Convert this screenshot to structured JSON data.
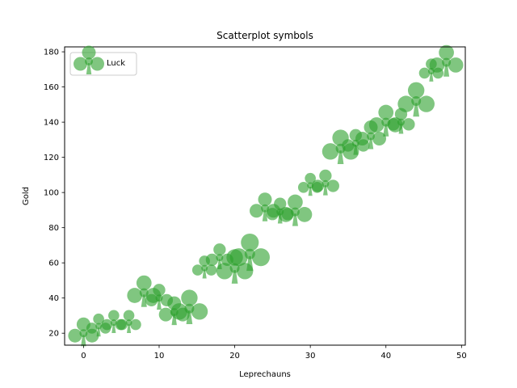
{
  "chart_data": {
    "type": "scatter",
    "title": "Scatterplot symbols",
    "xlabel": "Leprechauns",
    "ylabel": "Gold",
    "xlim": [
      -2.5,
      50.5
    ],
    "ylim": [
      13.2,
      182.8
    ],
    "xticks": [
      0,
      10,
      20,
      30,
      40,
      50
    ],
    "yticks": [
      20,
      40,
      60,
      80,
      100,
      120,
      140,
      160,
      180
    ],
    "grid": false,
    "legend_position": "upper left",
    "series": [
      {
        "name": "Luck",
        "color": "#2ca02c",
        "marker": "club-icon",
        "points": [
          {
            "x": 0,
            "y": 20,
            "s": 1.0
          },
          {
            "x": 2,
            "y": 24,
            "s": 0.8
          },
          {
            "x": 4,
            "y": 26,
            "s": 0.8
          },
          {
            "x": 6,
            "y": 26,
            "s": 0.8
          },
          {
            "x": 8,
            "y": 43,
            "s": 1.1
          },
          {
            "x": 10,
            "y": 40,
            "s": 0.9
          },
          {
            "x": 12,
            "y": 32,
            "s": 1.0
          },
          {
            "x": 14,
            "y": 34,
            "s": 1.2
          },
          {
            "x": 16,
            "y": 57,
            "s": 0.8
          },
          {
            "x": 18,
            "y": 63,
            "s": 0.9
          },
          {
            "x": 20,
            "y": 57,
            "s": 1.2
          },
          {
            "x": 22,
            "y": 65,
            "s": 1.3
          },
          {
            "x": 24,
            "y": 91,
            "s": 1.0
          },
          {
            "x": 26,
            "y": 89,
            "s": 0.9
          },
          {
            "x": 28,
            "y": 89,
            "s": 1.1
          },
          {
            "x": 30,
            "y": 104,
            "s": 0.8
          },
          {
            "x": 32,
            "y": 105,
            "s": 0.9
          },
          {
            "x": 34,
            "y": 125,
            "s": 1.2
          },
          {
            "x": 36,
            "y": 128,
            "s": 0.9
          },
          {
            "x": 38,
            "y": 132,
            "s": 1.0
          },
          {
            "x": 40,
            "y": 140,
            "s": 1.1
          },
          {
            "x": 42,
            "y": 140,
            "s": 0.9
          },
          {
            "x": 44,
            "y": 152,
            "s": 1.2
          },
          {
            "x": 46,
            "y": 169,
            "s": 0.8
          },
          {
            "x": 48,
            "y": 174,
            "s": 1.1
          }
        ]
      }
    ]
  }
}
